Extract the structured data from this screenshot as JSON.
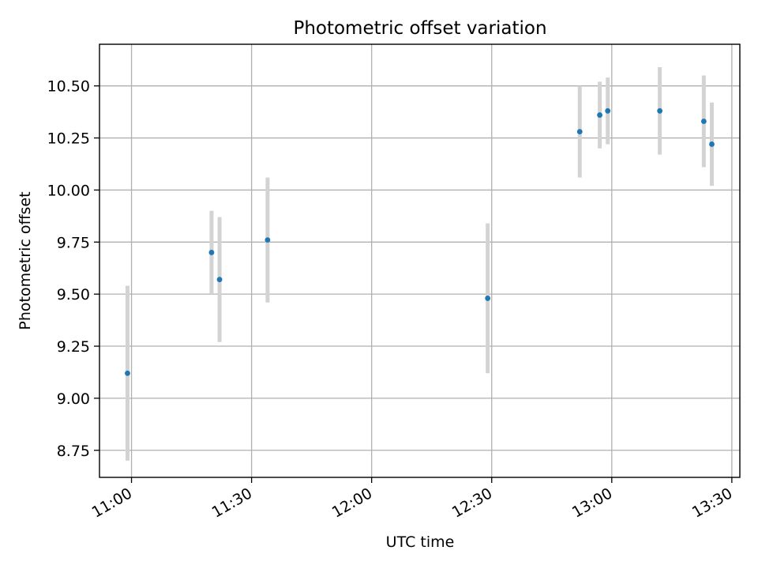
{
  "chart_data": {
    "type": "scatter",
    "title": "Photometric offset variation",
    "xlabel": "UTC time",
    "ylabel": "Photometric offset",
    "grid": true,
    "x_ticks": [
      "11:00",
      "11:30",
      "12:00",
      "12:30",
      "13:00",
      "13:30"
    ],
    "x_range": [
      "10:52",
      "13:32"
    ],
    "y_ticks": [
      "8.75",
      "9.00",
      "9.25",
      "9.50",
      "9.75",
      "10.00",
      "10.25",
      "10.50"
    ],
    "ylim": [
      8.62,
      10.7
    ],
    "colors": {
      "points": "#1f77b4",
      "error_bars": "#d3d3d3",
      "grid": "#b0b0b0"
    },
    "series": [
      {
        "points": [
          {
            "x": "10:59",
            "y": 9.12,
            "err": 0.42
          },
          {
            "x": "11:20",
            "y": 9.7,
            "err": 0.2
          },
          {
            "x": "11:22",
            "y": 9.57,
            "err": 0.3
          },
          {
            "x": "11:34",
            "y": 9.76,
            "err": 0.3
          },
          {
            "x": "12:29",
            "y": 9.48,
            "err": 0.36
          },
          {
            "x": "12:52",
            "y": 10.28,
            "err": 0.22
          },
          {
            "x": "12:57",
            "y": 10.36,
            "err": 0.16
          },
          {
            "x": "12:59",
            "y": 10.38,
            "err": 0.16
          },
          {
            "x": "13:12",
            "y": 10.38,
            "err": 0.21
          },
          {
            "x": "13:23",
            "y": 10.33,
            "err": 0.22
          },
          {
            "x": "13:25",
            "y": 10.22,
            "err": 0.2
          }
        ]
      }
    ]
  }
}
